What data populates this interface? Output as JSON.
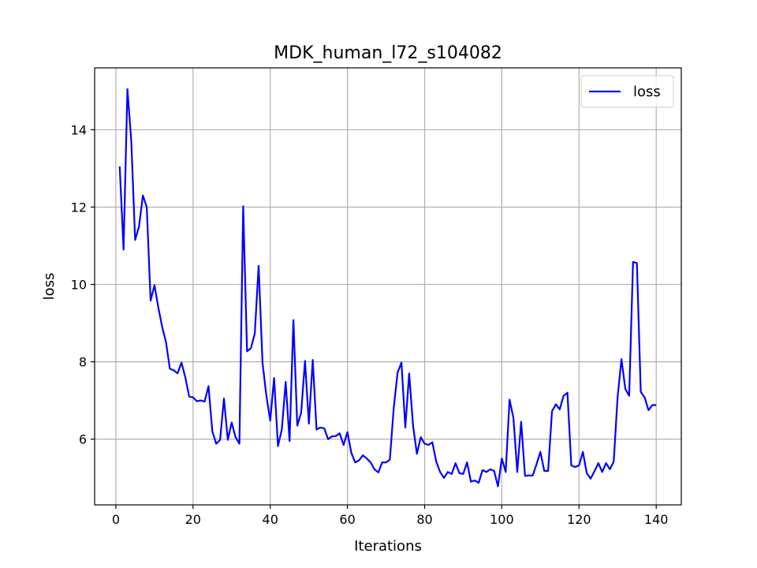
{
  "chart_data": {
    "type": "line",
    "title": "MDK_human_l72_s104082",
    "xlabel": "Iterations",
    "ylabel": "loss",
    "xlim": [
      -5.5,
      146.5
    ],
    "ylim": [
      4.3,
      15.6
    ],
    "xticks": [
      0,
      20,
      40,
      60,
      80,
      100,
      120,
      140
    ],
    "yticks": [
      6,
      8,
      10,
      12,
      14
    ],
    "grid": true,
    "legend": "top-right",
    "series": [
      {
        "name": "loss",
        "color": "#0000ff",
        "x": [
          1,
          2,
          3,
          4,
          5,
          6,
          7,
          8,
          9,
          10,
          11,
          12,
          13,
          14,
          15,
          16,
          17,
          18,
          19,
          20,
          21,
          22,
          23,
          24,
          25,
          26,
          27,
          28,
          29,
          30,
          31,
          32,
          33,
          34,
          35,
          36,
          37,
          38,
          39,
          40,
          41,
          42,
          43,
          44,
          45,
          46,
          47,
          48,
          49,
          50,
          51,
          52,
          53,
          54,
          55,
          56,
          57,
          58,
          59,
          60,
          61,
          62,
          63,
          64,
          65,
          66,
          67,
          68,
          69,
          70,
          71,
          72,
          73,
          74,
          75,
          76,
          77,
          78,
          79,
          80,
          81,
          82,
          83,
          84,
          85,
          86,
          87,
          88,
          89,
          90,
          91,
          92,
          93,
          94,
          95,
          96,
          97,
          98,
          99,
          100,
          101,
          102,
          103,
          104,
          105,
          106,
          107,
          108,
          109,
          110,
          111,
          112,
          113,
          114,
          115,
          116,
          117,
          118,
          119,
          120,
          121,
          122,
          123,
          124,
          125,
          126,
          127,
          128,
          129,
          130,
          131,
          132,
          133,
          134,
          135,
          136,
          137,
          138,
          139,
          140
        ],
        "y": [
          13.05,
          10.9,
          15.05,
          13.7,
          11.15,
          11.5,
          12.3,
          12.0,
          9.58,
          9.98,
          9.4,
          8.9,
          8.5,
          7.82,
          7.78,
          7.7,
          7.98,
          7.6,
          7.1,
          7.08,
          6.98,
          7.0,
          6.97,
          7.37,
          6.2,
          5.88,
          5.98,
          7.05,
          5.98,
          6.43,
          6.05,
          5.88,
          12.02,
          8.27,
          8.35,
          8.73,
          10.48,
          7.98,
          7.12,
          6.48,
          7.58,
          5.82,
          6.25,
          7.48,
          5.95,
          9.08,
          6.35,
          6.68,
          8.02,
          6.4,
          8.05,
          6.25,
          6.3,
          6.28,
          6.0,
          6.07,
          6.08,
          6.15,
          5.85,
          6.18,
          5.65,
          5.4,
          5.45,
          5.58,
          5.5,
          5.4,
          5.22,
          5.14,
          5.4,
          5.4,
          5.47,
          6.8,
          7.72,
          7.98,
          6.3,
          7.7,
          6.35,
          5.62,
          6.05,
          5.88,
          5.85,
          5.92,
          5.42,
          5.15,
          5.0,
          5.15,
          5.1,
          5.38,
          5.12,
          5.1,
          5.4,
          4.9,
          4.93,
          4.87,
          5.2,
          5.15,
          5.22,
          5.18,
          4.78,
          5.5,
          5.15,
          7.02,
          6.55,
          5.15,
          6.45,
          5.05,
          5.06,
          5.06,
          5.35,
          5.67,
          5.18,
          5.18,
          6.72,
          6.9,
          6.77,
          7.12,
          7.2,
          5.32,
          5.28,
          5.32,
          5.67,
          5.12,
          4.98,
          5.17,
          5.38,
          5.15,
          5.38,
          5.22,
          5.42,
          7.08,
          8.07,
          7.3,
          7.12,
          10.58,
          10.55,
          7.22,
          7.08,
          6.75,
          6.88,
          6.88
        ]
      }
    ]
  }
}
